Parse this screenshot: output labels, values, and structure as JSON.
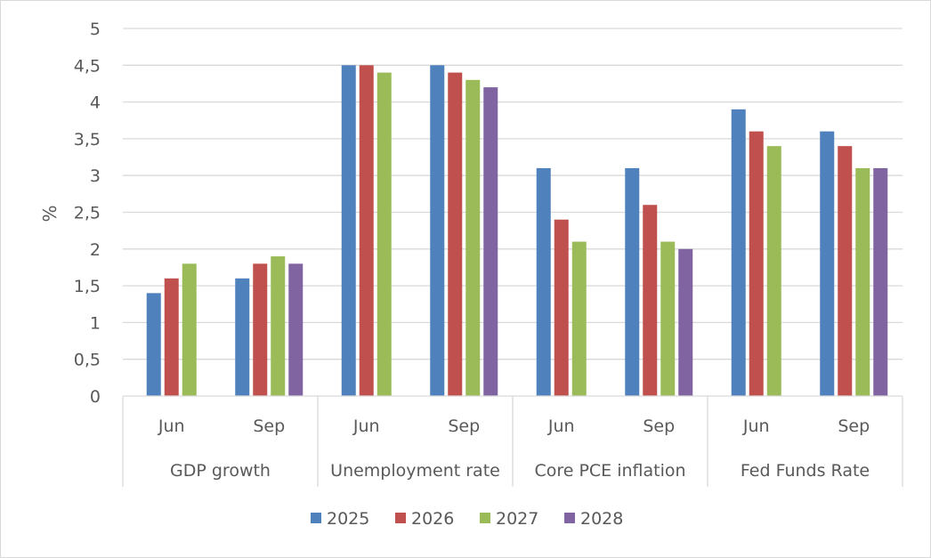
{
  "chart_data": {
    "type": "bar",
    "ylabel": "%",
    "ylim": [
      0,
      5
    ],
    "yticks": [
      "0",
      "0,5",
      "1",
      "1,5",
      "2",
      "2,5",
      "3",
      "3,5",
      "4",
      "4,5",
      "5"
    ],
    "grid": true,
    "legend_position": "bottom",
    "groups": [
      {
        "name": "GDP growth",
        "categories": [
          "Jun",
          "Sep"
        ]
      },
      {
        "name": "Unemployment rate",
        "categories": [
          "Jun",
          "Sep"
        ]
      },
      {
        "name": "Core PCE inflation",
        "categories": [
          "Jun",
          "Sep"
        ]
      },
      {
        "name": "Fed Funds Rate",
        "categories": [
          "Jun",
          "Sep"
        ]
      }
    ],
    "categories": [
      "GDP growth Jun",
      "GDP growth Sep",
      "Unemployment rate Jun",
      "Unemployment rate Sep",
      "Core PCE inflation Jun",
      "Core PCE inflation Sep",
      "Fed Funds Rate Jun",
      "Fed Funds Rate Sep"
    ],
    "series": [
      {
        "name": "2025",
        "color": "#4f81bd",
        "values": [
          1.4,
          1.6,
          4.5,
          4.5,
          3.1,
          3.1,
          3.9,
          3.6
        ]
      },
      {
        "name": "2026",
        "color": "#c0504d",
        "values": [
          1.6,
          1.8,
          4.5,
          4.4,
          2.4,
          2.6,
          3.6,
          3.4
        ]
      },
      {
        "name": "2027",
        "color": "#9bbb59",
        "values": [
          1.8,
          1.9,
          4.4,
          4.3,
          2.1,
          2.1,
          3.4,
          3.1
        ]
      },
      {
        "name": "2028",
        "color": "#8064a2",
        "values": [
          null,
          1.8,
          null,
          4.2,
          null,
          2.0,
          null,
          3.1
        ]
      }
    ]
  }
}
